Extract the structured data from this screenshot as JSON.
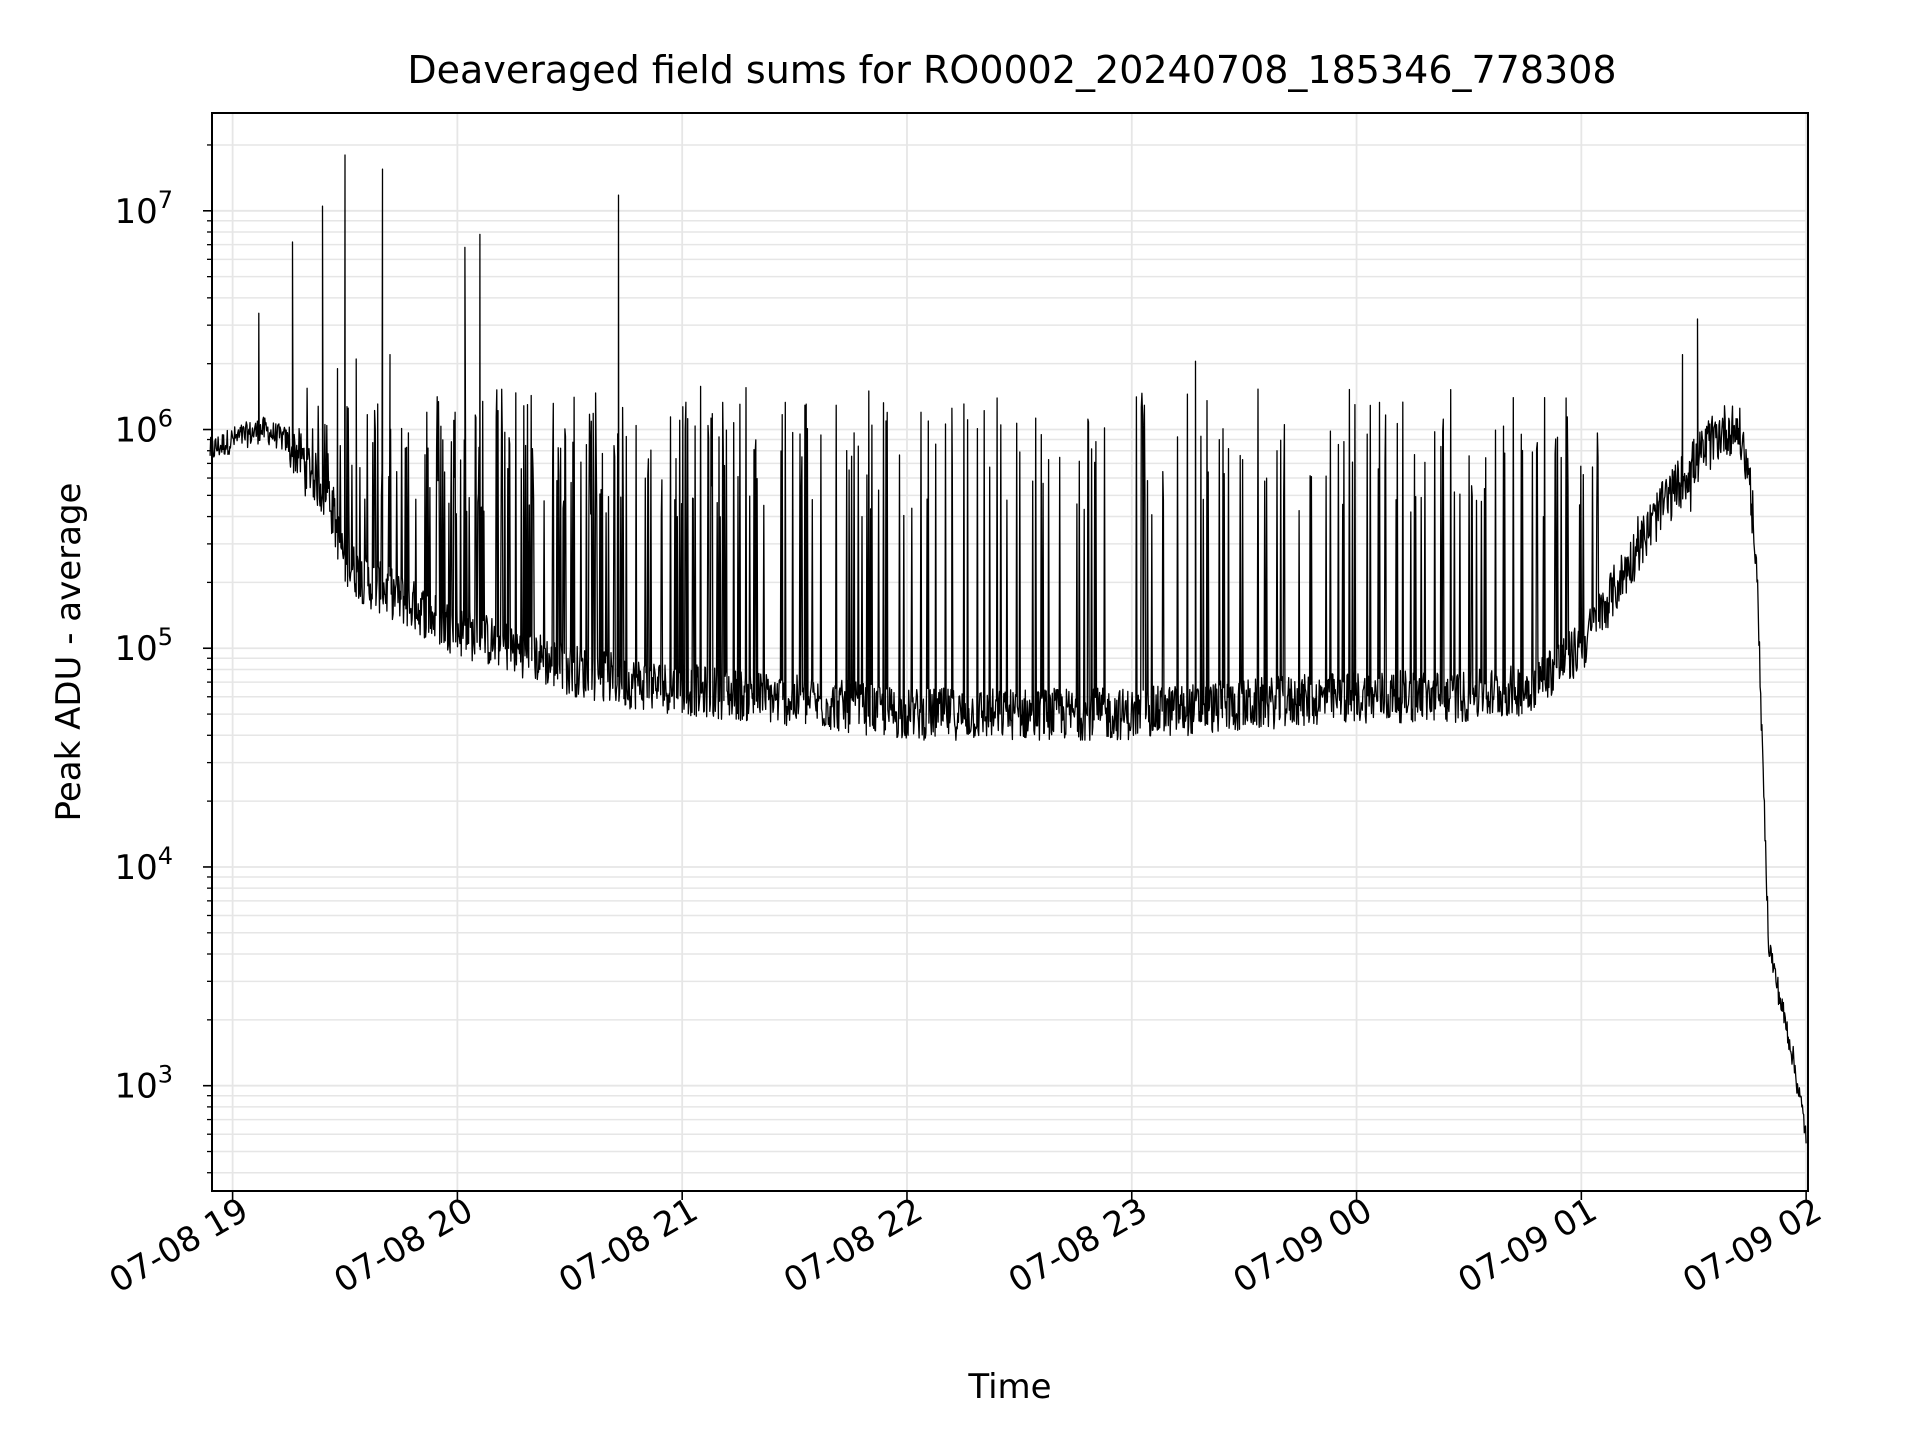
{
  "chart_data": {
    "type": "line",
    "title": "Deaveraged field sums for RO0002_20240708_185346_778308",
    "xlabel": "Time",
    "ylabel": "Peak ADU - average",
    "yscale": "log",
    "ylim": [
      330,
      28000000
    ],
    "xlim": [
      "07-08 18:54:30",
      "07-09 02:00:30"
    ],
    "grid": true,
    "line_color": "#000000",
    "grid_color": "#e6e6e6",
    "x_ticks": [
      {
        "label": "07-08 19",
        "x": "07-08 19:00"
      },
      {
        "label": "07-08 20",
        "x": "07-08 20:00"
      },
      {
        "label": "07-08 21",
        "x": "07-08 21:00"
      },
      {
        "label": "07-08 22",
        "x": "07-08 22:00"
      },
      {
        "label": "07-08 23",
        "x": "07-08 23:00"
      },
      {
        "label": "07-09 00",
        "x": "07-09 00:00"
      },
      {
        "label": "07-09 01",
        "x": "07-09 01:00"
      },
      {
        "label": "07-09 02",
        "x": "07-09 02:00"
      }
    ],
    "y_ticks": [
      {
        "base": "10",
        "exp": "3",
        "value": 1000
      },
      {
        "base": "10",
        "exp": "4",
        "value": 10000
      },
      {
        "base": "10",
        "exp": "5",
        "value": 100000
      },
      {
        "base": "10",
        "exp": "6",
        "value": 1000000
      },
      {
        "base": "10",
        "exp": "7",
        "value": 10000000
      }
    ],
    "series": [
      {
        "x": [
          "07-08 18:54",
          "07-08 19:00",
          "07-08 19:08",
          "07-08 19:14",
          "07-08 19:20",
          "07-08 19:26",
          "07-08 19:30",
          "07-08 19:36",
          "07-08 19:42",
          "07-08 19:50",
          "07-08 20:00",
          "07-08 20:15",
          "07-08 20:30",
          "07-08 20:45",
          "07-08 21:00",
          "07-08 21:20",
          "07-08 21:40",
          "07-08 22:00",
          "07-08 22:30",
          "07-08 23:00",
          "07-08 23:30",
          "07-09 00:00",
          "07-09 00:30",
          "07-09 00:45",
          "07-09 01:00",
          "07-09 01:10",
          "07-09 01:20",
          "07-09 01:30",
          "07-09 01:38",
          "07-09 01:42",
          "07-09 01:45",
          "07-09 01:47",
          "07-09 01:48",
          "07-09 01:50",
          "07-09 01:53",
          "07-09 01:56",
          "07-09 02:00"
        ],
        "y": [
          800000,
          900000,
          1000000,
          900000,
          700000,
          450000,
          250000,
          200000,
          180000,
          150000,
          120000,
          100000,
          80000,
          70000,
          65000,
          60000,
          55000,
          50000,
          50000,
          50000,
          55000,
          60000,
          60000,
          65000,
          100000,
          200000,
          400000,
          700000,
          1000000,
          1000000,
          600000,
          200000,
          50000,
          4500,
          2500,
          1500,
          600
        ]
      }
    ],
    "spikes": [
      {
        "x": "07-08 19:07",
        "y": 3400000
      },
      {
        "x": "07-08 19:16",
        "y": 7200000
      },
      {
        "x": "07-08 19:24",
        "y": 10500000
      },
      {
        "x": "07-08 19:28",
        "y": 1900000
      },
      {
        "x": "07-08 19:30",
        "y": 18000000
      },
      {
        "x": "07-08 19:33",
        "y": 2100000
      },
      {
        "x": "07-08 19:40",
        "y": 15500000
      },
      {
        "x": "07-08 19:42",
        "y": 2200000
      },
      {
        "x": "07-08 20:02",
        "y": 6800000
      },
      {
        "x": "07-08 20:06",
        "y": 7800000
      },
      {
        "x": "07-08 20:43",
        "y": 11800000
      },
      {
        "x": "07-08 22:12",
        "y": 1250000
      },
      {
        "x": "07-08 23:17",
        "y": 2050000
      },
      {
        "x": "07-09 01:27",
        "y": 2200000
      },
      {
        "x": "07-09 01:31",
        "y": 3200000
      }
    ]
  }
}
